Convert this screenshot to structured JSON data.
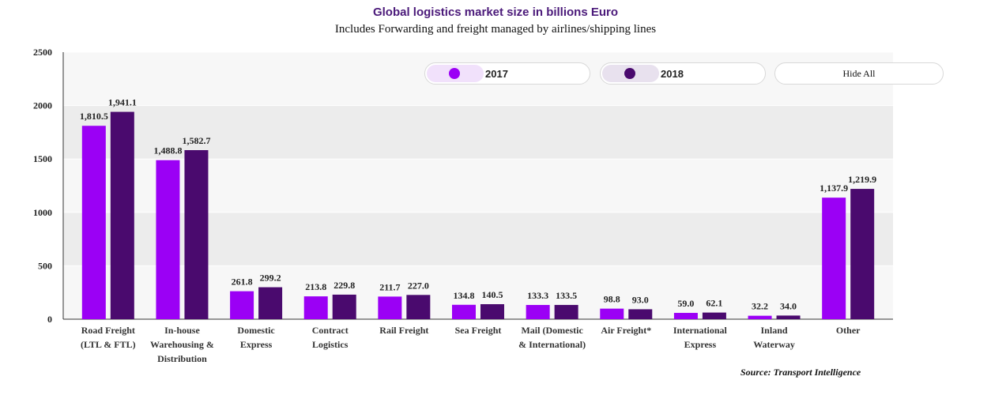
{
  "header": {
    "title": "Global logistics market size in billions Euro",
    "subtitle": "Includes Forwarding and freight managed by airlines/shipping lines"
  },
  "legend": {
    "items": [
      {
        "label": "2017",
        "color": "#9b00f5",
        "bg": "#f1e1fb"
      },
      {
        "label": "2018",
        "color": "#4a0a6e",
        "bg": "#e8e1ee"
      }
    ],
    "hide_all_label": "Hide All"
  },
  "source": "Source: Transport Intelligence",
  "colors": {
    "plot_band_light": "#f7f7f7",
    "plot_band_dark": "#ececec"
  },
  "chart_data": {
    "type": "bar",
    "categories": [
      [
        "Road Freight",
        "(LTL & FTL)"
      ],
      [
        "In-house",
        "Warehousing &",
        "Distribution"
      ],
      [
        "Domestic",
        "Express"
      ],
      [
        "Contract",
        "Logistics"
      ],
      [
        "Rail Freight"
      ],
      [
        "Sea Freight"
      ],
      [
        "Mail (Domestic",
        "& International)"
      ],
      [
        "Air Freight*"
      ],
      [
        "International",
        "Express"
      ],
      [
        "Inland",
        "Waterway"
      ],
      [
        "Other"
      ]
    ],
    "series": [
      {
        "name": "2017",
        "color": "#9b00f5",
        "values": [
          1810.5,
          1488.8,
          261.8,
          213.8,
          211.7,
          134.8,
          133.3,
          98.8,
          59.0,
          32.2,
          1137.9
        ],
        "labels": [
          "1,810.5",
          "1,488.8",
          "261.8",
          "213.8",
          "211.7",
          "134.8",
          "133.3",
          "98.8",
          "59.0",
          "32.2",
          "1,137.9"
        ]
      },
      {
        "name": "2018",
        "color": "#4a0a6e",
        "values": [
          1941.1,
          1582.7,
          299.2,
          229.8,
          227.0,
          140.5,
          133.5,
          93.0,
          62.1,
          34.0,
          1219.9
        ],
        "labels": [
          "1,941.1",
          "1,582.7",
          "299.2",
          "229.8",
          "227.0",
          "140.5",
          "133.5",
          "93.0",
          "62.1",
          "34.0",
          "1,219.9"
        ]
      }
    ],
    "yticks": [
      0,
      500,
      1000,
      1500,
      2000,
      2500
    ],
    "ylim": [
      0,
      2500
    ],
    "grid": true
  }
}
